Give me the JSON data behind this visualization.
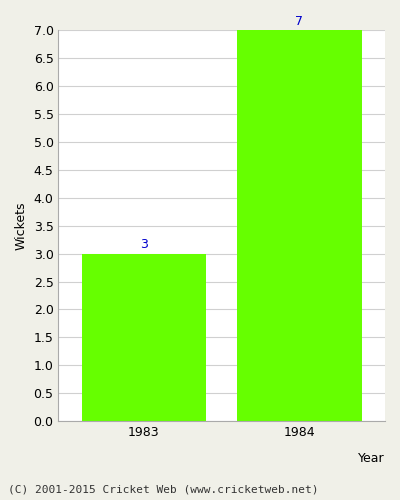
{
  "categories": [
    "1983",
    "1984"
  ],
  "values": [
    3,
    7
  ],
  "bar_color": "#66ff00",
  "bar_edgecolor": "#66ff00",
  "xlabel": "Year",
  "ylabel": "Wickets",
  "ylim": [
    0,
    7.0
  ],
  "yticks": [
    0.0,
    0.5,
    1.0,
    1.5,
    2.0,
    2.5,
    3.0,
    3.5,
    4.0,
    4.5,
    5.0,
    5.5,
    6.0,
    6.5,
    7.0
  ],
  "annotation_color": "#0000cc",
  "annotation_fontsize": 9,
  "axis_label_fontsize": 9,
  "tick_fontsize": 9,
  "footer_text": "(C) 2001-2015 Cricket Web (www.cricketweb.net)",
  "footer_fontsize": 8,
  "background_color": "#f0f0e8",
  "plot_bg_color": "#ffffff",
  "grid_color": "#d0d0d0",
  "bar_width": 0.8
}
